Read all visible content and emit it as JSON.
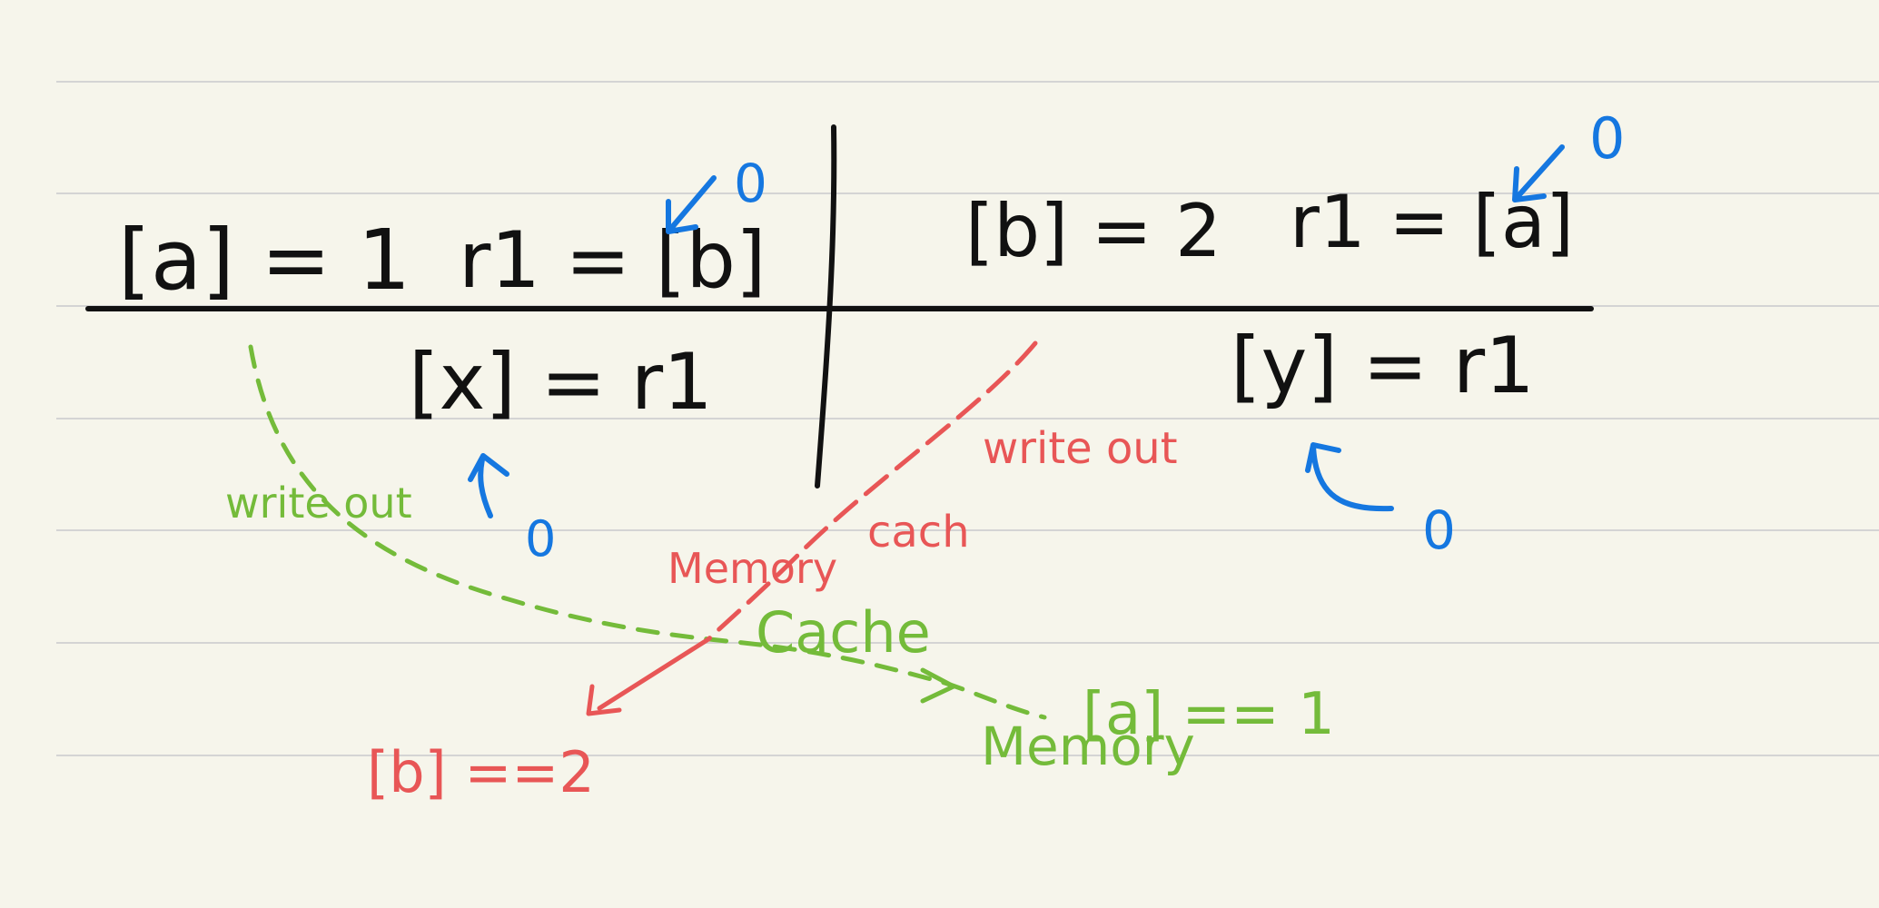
{
  "colors": {
    "paper": "#f6f5eb",
    "rule_line": "#d4d4d4",
    "ink_black": "#111111",
    "ink_blue": "#1577e0",
    "ink_red": "#e85656",
    "ink_green": "#74bb3a"
  },
  "table": {
    "left": {
      "row1_store": "[a] = 1",
      "row1_load": "r1 = [b]",
      "row2_store": "[x] = r1"
    },
    "right": {
      "row1_store": "[b] = 2",
      "row1_load": "r1 = [a]",
      "row2_store": "[y] = r1"
    }
  },
  "annotations": {
    "blue_zero_left_load": "0",
    "blue_zero_right_load": "0",
    "blue_zero_left_store": "0",
    "blue_zero_right_store": "0",
    "green_writeout": "write out",
    "green_cache": "Cache",
    "green_memory": "Memory",
    "green_result": "[a] == 1",
    "red_writeout": "write out",
    "red_cache": "cach",
    "red_memory": "Memory",
    "red_result": "[b] ==2"
  }
}
